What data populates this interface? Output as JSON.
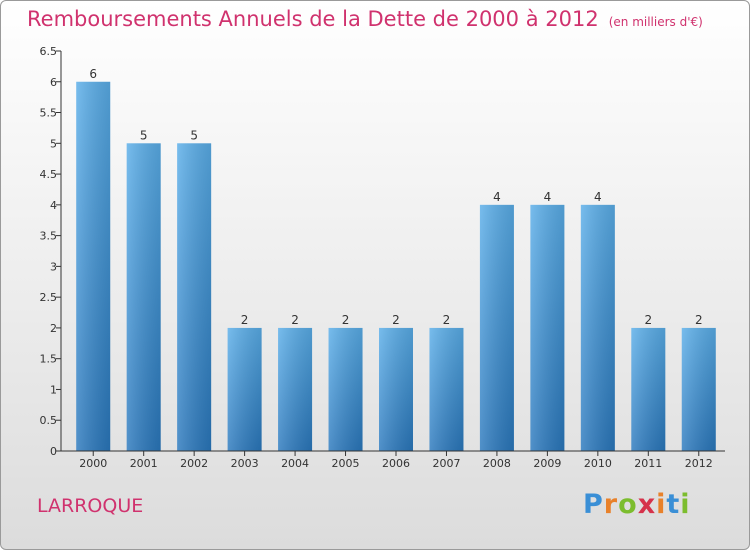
{
  "header": {
    "title": "Remboursements Annuels de la Dette de 2000 à 2012",
    "subtitle": "(en milliers d'€)"
  },
  "commune": "LARROQUE",
  "logo": {
    "text": "Proxiti",
    "letter_colors": [
      "#3a8fd6",
      "#e8812a",
      "#7cbd2e",
      "#d6324b",
      "#e8812a",
      "#3a8fd6",
      "#7cbd2e"
    ]
  },
  "colors": {
    "title": "#d0326e",
    "bar_top": "#5aaee9",
    "bar_bottom": "#2a78bd"
  },
  "chart_data": {
    "type": "bar",
    "title": "Remboursements Annuels de la Dette de 2000 à 2012",
    "subtitle": "(en milliers d'€)",
    "categories": [
      "2000",
      "2001",
      "2002",
      "2003",
      "2004",
      "2005",
      "2006",
      "2007",
      "2008",
      "2009",
      "2010",
      "2011",
      "2012"
    ],
    "values": [
      6,
      5,
      5,
      2,
      2,
      2,
      2,
      2,
      4,
      4,
      4,
      2,
      2
    ],
    "data_labels": [
      "6",
      "5",
      "5",
      "2",
      "2",
      "2",
      "2",
      "2",
      "4",
      "4",
      "4",
      "2",
      "2"
    ],
    "yticks": [
      "0",
      "0.5",
      "1",
      "1.5",
      "2",
      "2.5",
      "3",
      "3.5",
      "4",
      "4.5",
      "5",
      "5.5",
      "6",
      "6.5"
    ],
    "ylim": [
      0,
      6.5
    ],
    "grid": false,
    "xlabel": "",
    "ylabel": ""
  }
}
